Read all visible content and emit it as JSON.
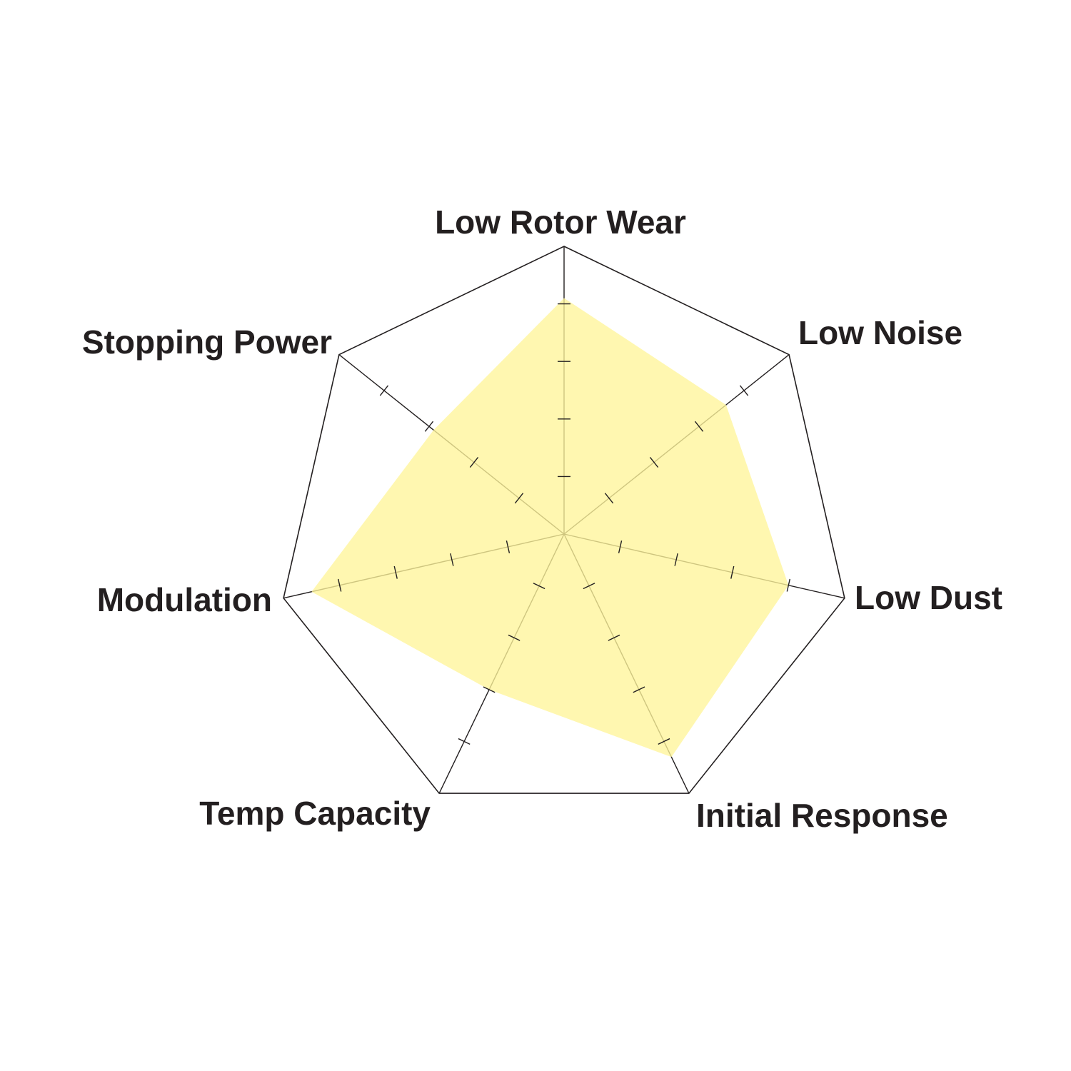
{
  "chart_data": {
    "type": "radar",
    "title": "",
    "axes": [
      "Low Rotor Wear",
      "Low Noise",
      "Low Dust",
      "Initial Response",
      "Temp Capacity",
      "Modulation",
      "Stopping Power"
    ],
    "range": [
      0,
      5
    ],
    "ticks": [
      1,
      2,
      3,
      4
    ],
    "series": [
      {
        "values": [
          4.1,
          3.6,
          4.0,
          4.3,
          3.0,
          4.5,
          2.9
        ],
        "color": "#fff59a"
      }
    ],
    "grid": "outer heptagon with spokes",
    "legend": "none",
    "colors": {
      "outline": "#231f20",
      "fill": "#fff59a",
      "text": "#231f20"
    }
  }
}
